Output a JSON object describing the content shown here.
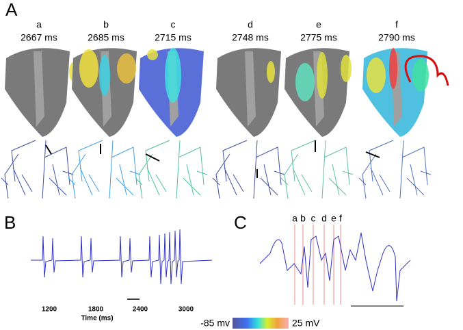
{
  "panels": {
    "A": {
      "label": "A",
      "frames": [
        {
          "letter": "a",
          "time": "2667 ms"
        },
        {
          "letter": "b",
          "time": "2685 ms"
        },
        {
          "letter": "c",
          "time": "2715 ms"
        },
        {
          "letter": "d",
          "time": "2748 ms"
        },
        {
          "letter": "e",
          "time": "2775 ms"
        },
        {
          "letter": "f",
          "time": "2790 ms"
        }
      ]
    },
    "B": {
      "label": "B",
      "ticks": [
        "1200",
        "1800",
        "2400",
        "3000"
      ],
      "axis_label": "Time (ms)"
    },
    "C": {
      "label": "C",
      "markers": [
        "a",
        "b",
        "c",
        "d",
        "e",
        "f"
      ]
    }
  },
  "colorbar": {
    "min_label": "-85 mv",
    "max_label": "25 mV"
  }
}
